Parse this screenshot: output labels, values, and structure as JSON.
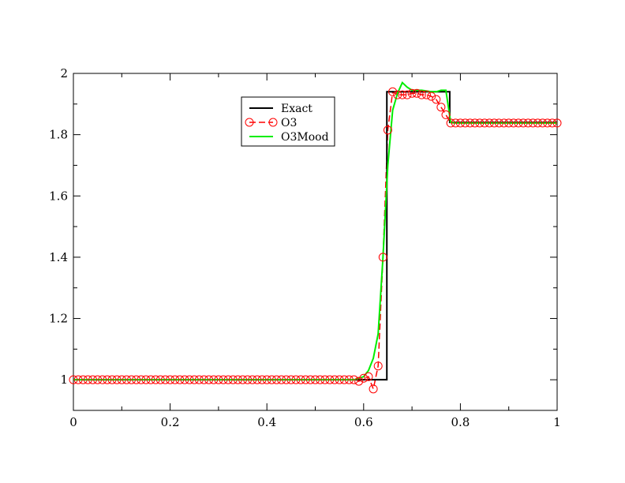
{
  "chart_data": {
    "type": "line",
    "xlim": [
      0,
      1
    ],
    "ylim": [
      0.9,
      2.0
    ],
    "x_ticks": [
      0,
      0.2,
      0.4,
      0.6,
      0.8,
      1
    ],
    "x_tick_labels": [
      "0",
      "0.2",
      "0.4",
      "0.6",
      "0.8",
      "1"
    ],
    "y_ticks": [
      1.0,
      1.2,
      1.4,
      1.6,
      1.8,
      2.0
    ],
    "y_tick_labels": [
      "1",
      "1.2",
      "1.4",
      "1.6",
      "1.8",
      "2"
    ],
    "grid": false,
    "legend_position": "top-center",
    "series": [
      {
        "name": "Exact",
        "color": "#000000",
        "style": "solid",
        "x": [
          0,
          0.646,
          0.646,
          0.648,
          0.648,
          0.778,
          0.778,
          1
        ],
        "y": [
          1.0,
          1.0,
          1.0,
          1.0,
          1.94,
          1.94,
          1.84,
          1.84
        ]
      },
      {
        "name": "O3",
        "color": "#ff0000",
        "style": "dashed",
        "marker": "circle",
        "x": [
          0.59,
          0.6,
          0.61,
          0.62,
          0.63,
          0.64,
          0.65,
          0.66,
          0.67,
          0.68,
          0.69,
          0.7,
          0.71,
          0.72,
          0.73,
          0.74,
          0.75,
          0.76,
          0.77,
          0.78
        ],
        "y": [
          0.995,
          1.005,
          1.01,
          0.97,
          1.045,
          1.4,
          1.815,
          1.94,
          1.93,
          1.93,
          1.93,
          1.935,
          1.935,
          1.93,
          1.93,
          1.925,
          1.915,
          1.89,
          1.865,
          1.838
        ]
      },
      {
        "name": "O3Mood",
        "color": "#00ee00",
        "style": "solid",
        "x": [
          0,
          0.58,
          0.6,
          0.61,
          0.62,
          0.63,
          0.64,
          0.65,
          0.66,
          0.67,
          0.68,
          0.69,
          0.7,
          0.72,
          0.74,
          0.75,
          0.76,
          0.77,
          0.78,
          0.79,
          1
        ],
        "y": [
          1.0,
          1.0,
          1.01,
          1.03,
          1.07,
          1.15,
          1.4,
          1.7,
          1.88,
          1.935,
          1.97,
          1.955,
          1.945,
          1.945,
          1.94,
          1.94,
          1.945,
          1.945,
          1.84,
          1.838,
          1.838
        ]
      }
    ],
    "o3_uniform_markers": [
      {
        "x_from": 0.0,
        "x_to": 0.58,
        "count": 59,
        "y": 1.0
      },
      {
        "x_from": 0.79,
        "x_to": 1.0,
        "count": 22,
        "y": 1.838
      }
    ]
  }
}
